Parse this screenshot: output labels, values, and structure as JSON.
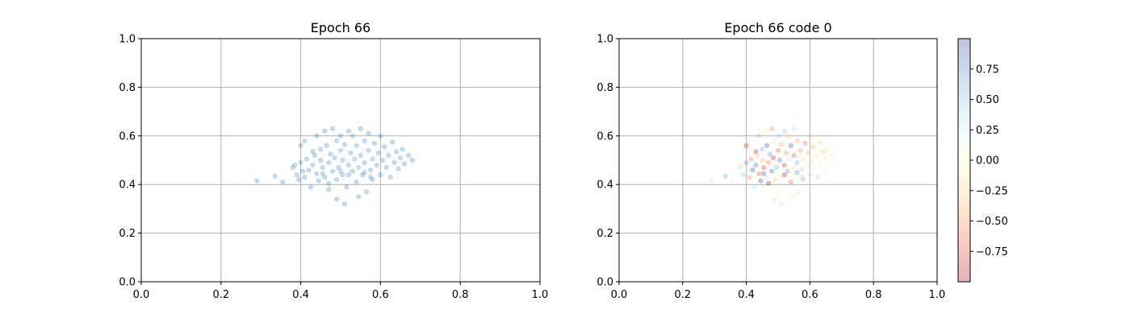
{
  "chart_data": [
    {
      "type": "scatter",
      "title": "Epoch 66",
      "xlim": [
        0.0,
        1.0
      ],
      "ylim": [
        0.0,
        1.0
      ],
      "xticks": [
        "0.0",
        "0.2",
        "0.4",
        "0.6",
        "0.8",
        "1.0"
      ],
      "yticks": [
        "0.0",
        "0.2",
        "0.4",
        "0.6",
        "0.8",
        "1.0"
      ],
      "grid": true,
      "marker_color": "#1f77b4",
      "marker_alpha": 0.25,
      "points": [
        [
          0.29,
          0.415
        ],
        [
          0.335,
          0.435
        ],
        [
          0.355,
          0.41
        ],
        [
          0.38,
          0.47
        ],
        [
          0.385,
          0.48
        ],
        [
          0.39,
          0.44
        ],
        [
          0.395,
          0.42
        ],
        [
          0.4,
          0.56
        ],
        [
          0.4,
          0.49
        ],
        [
          0.405,
          0.455
        ],
        [
          0.41,
          0.43
        ],
        [
          0.41,
          0.58
        ],
        [
          0.415,
          0.505
        ],
        [
          0.42,
          0.46
        ],
        [
          0.425,
          0.39
        ],
        [
          0.43,
          0.535
        ],
        [
          0.43,
          0.48
        ],
        [
          0.435,
          0.52
        ],
        [
          0.44,
          0.6
        ],
        [
          0.44,
          0.445
        ],
        [
          0.445,
          0.415
        ],
        [
          0.45,
          0.5
        ],
        [
          0.45,
          0.545
        ],
        [
          0.455,
          0.47
        ],
        [
          0.46,
          0.43
        ],
        [
          0.46,
          0.62
        ],
        [
          0.465,
          0.56
        ],
        [
          0.47,
          0.49
        ],
        [
          0.47,
          0.38
        ],
        [
          0.475,
          0.525
        ],
        [
          0.48,
          0.63
        ],
        [
          0.48,
          0.455
        ],
        [
          0.485,
          0.51
        ],
        [
          0.49,
          0.58
        ],
        [
          0.49,
          0.42
        ],
        [
          0.495,
          0.47
        ],
        [
          0.5,
          0.54
        ],
        [
          0.5,
          0.6
        ],
        [
          0.505,
          0.44
        ],
        [
          0.505,
          0.5
        ],
        [
          0.51,
          0.565
        ],
        [
          0.515,
          0.39
        ],
        [
          0.52,
          0.48
        ],
        [
          0.52,
          0.62
        ],
        [
          0.525,
          0.53
        ],
        [
          0.53,
          0.455
        ],
        [
          0.53,
          0.6
        ],
        [
          0.535,
          0.505
        ],
        [
          0.54,
          0.41
        ],
        [
          0.54,
          0.56
        ],
        [
          0.545,
          0.47
        ],
        [
          0.55,
          0.63
        ],
        [
          0.55,
          0.52
        ],
        [
          0.555,
          0.44
        ],
        [
          0.56,
          0.58
        ],
        [
          0.56,
          0.49
        ],
        [
          0.565,
          0.37
        ],
        [
          0.57,
          0.54
        ],
        [
          0.57,
          0.61
        ],
        [
          0.575,
          0.46
        ],
        [
          0.58,
          0.505
        ],
        [
          0.58,
          0.42
        ],
        [
          0.585,
          0.57
        ],
        [
          0.59,
          0.48
        ],
        [
          0.595,
          0.53
        ],
        [
          0.6,
          0.44
        ],
        [
          0.6,
          0.6
        ],
        [
          0.605,
          0.5
        ],
        [
          0.61,
          0.555
        ],
        [
          0.615,
          0.47
        ],
        [
          0.62,
          0.52
        ],
        [
          0.625,
          0.43
        ],
        [
          0.63,
          0.575
        ],
        [
          0.635,
          0.49
        ],
        [
          0.64,
          0.535
        ],
        [
          0.645,
          0.465
        ],
        [
          0.65,
          0.51
        ],
        [
          0.655,
          0.545
        ],
        [
          0.66,
          0.485
        ],
        [
          0.67,
          0.52
        ],
        [
          0.68,
          0.5
        ],
        [
          0.49,
          0.34
        ],
        [
          0.545,
          0.35
        ],
        [
          0.51,
          0.32
        ],
        [
          0.47,
          0.405
        ],
        [
          0.455,
          0.445
        ],
        [
          0.52,
          0.44
        ],
        [
          0.56,
          0.45
        ],
        [
          0.575,
          0.43
        ],
        [
          0.5,
          0.455
        ]
      ]
    },
    {
      "type": "scatter",
      "title": "Epoch 66 code 0",
      "xlim": [
        0.0,
        1.0
      ],
      "ylim": [
        0.0,
        1.0
      ],
      "xticks": [
        "0.0",
        "0.2",
        "0.4",
        "0.6",
        "0.8",
        "1.0"
      ],
      "yticks": [
        "0.0",
        "0.2",
        "0.4",
        "0.6",
        "0.8",
        "1.0"
      ],
      "grid": true,
      "marker_alpha": 0.3,
      "colormap": "RdYlBu",
      "colorbar": {
        "range": [
          -1.0,
          1.0
        ],
        "ticks": [
          "−0.75",
          "−0.50",
          "−0.25",
          "0.00",
          "0.25",
          "0.50",
          "0.75"
        ],
        "tick_values": [
          -0.75,
          -0.5,
          -0.25,
          0.0,
          0.25,
          0.5,
          0.75
        ],
        "colors": [
          "#a50026",
          "#d73027",
          "#f46d43",
          "#fdae61",
          "#fee090",
          "#ffffbf",
          "#e0f3f8",
          "#abd9e9",
          "#74add1",
          "#4575b4",
          "#313695"
        ]
      },
      "points": [
        [
          0.29,
          0.415,
          0.3
        ],
        [
          0.335,
          0.435,
          0.6
        ],
        [
          0.355,
          0.41,
          0.2
        ],
        [
          0.38,
          0.47,
          0.4
        ],
        [
          0.385,
          0.48,
          -0.2
        ],
        [
          0.39,
          0.44,
          0.5
        ],
        [
          0.395,
          0.42,
          0.1
        ],
        [
          0.4,
          0.56,
          -0.8
        ],
        [
          0.4,
          0.49,
          0.7
        ],
        [
          0.405,
          0.455,
          0.3
        ],
        [
          0.41,
          0.43,
          -0.5
        ],
        [
          0.41,
          0.58,
          0.2
        ],
        [
          0.415,
          0.505,
          -0.6
        ],
        [
          0.42,
          0.46,
          0.9
        ],
        [
          0.425,
          0.39,
          0.4
        ],
        [
          0.43,
          0.535,
          -0.9
        ],
        [
          0.43,
          0.48,
          0.8
        ],
        [
          0.435,
          0.52,
          -0.3
        ],
        [
          0.44,
          0.6,
          0.5
        ],
        [
          0.44,
          0.445,
          -0.7
        ],
        [
          0.445,
          0.415,
          0.95
        ],
        [
          0.45,
          0.5,
          -0.4
        ],
        [
          0.45,
          0.545,
          0.6
        ],
        [
          0.455,
          0.47,
          -0.8
        ],
        [
          0.46,
          0.43,
          0.3
        ],
        [
          0.46,
          0.62,
          -0.2
        ],
        [
          0.465,
          0.56,
          0.9
        ],
        [
          0.47,
          0.49,
          -0.6
        ],
        [
          0.47,
          0.38,
          0.1
        ],
        [
          0.475,
          0.525,
          0.7
        ],
        [
          0.48,
          0.63,
          -0.5
        ],
        [
          0.48,
          0.455,
          0.85
        ],
        [
          0.485,
          0.51,
          -0.9
        ],
        [
          0.49,
          0.58,
          0.2
        ],
        [
          0.49,
          0.42,
          -0.3
        ],
        [
          0.495,
          0.47,
          0.6
        ],
        [
          0.5,
          0.54,
          -0.7
        ],
        [
          0.5,
          0.6,
          0.4
        ],
        [
          0.505,
          0.44,
          -0.1
        ],
        [
          0.505,
          0.5,
          0.8
        ],
        [
          0.51,
          0.565,
          -0.4
        ],
        [
          0.515,
          0.39,
          0.0
        ],
        [
          0.52,
          0.48,
          -0.8
        ],
        [
          0.52,
          0.62,
          0.5
        ],
        [
          0.525,
          0.53,
          -0.5
        ],
        [
          0.53,
          0.455,
          0.7
        ],
        [
          0.53,
          0.6,
          -0.3
        ],
        [
          0.535,
          0.505,
          0.3
        ],
        [
          0.54,
          0.41,
          -0.6
        ],
        [
          0.54,
          0.56,
          0.9
        ],
        [
          0.545,
          0.47,
          -0.2
        ],
        [
          0.55,
          0.63,
          0.4
        ],
        [
          0.55,
          0.52,
          -0.7
        ],
        [
          0.555,
          0.44,
          0.1
        ],
        [
          0.56,
          0.58,
          -0.4
        ],
        [
          0.56,
          0.49,
          0.6
        ],
        [
          0.565,
          0.37,
          -0.1
        ],
        [
          0.57,
          0.54,
          -0.5
        ],
        [
          0.57,
          0.61,
          0.2
        ],
        [
          0.575,
          0.46,
          -0.3
        ],
        [
          0.58,
          0.505,
          -0.2
        ],
        [
          0.58,
          0.42,
          0.5
        ],
        [
          0.585,
          0.57,
          -0.6
        ],
        [
          0.59,
          0.48,
          -0.1
        ],
        [
          0.595,
          0.53,
          -0.4
        ],
        [
          0.6,
          0.44,
          0.3
        ],
        [
          0.6,
          0.6,
          -0.3
        ],
        [
          0.605,
          0.5,
          -0.15
        ],
        [
          0.61,
          0.555,
          -0.35
        ],
        [
          0.615,
          0.47,
          0.1
        ],
        [
          0.62,
          0.52,
          -0.2
        ],
        [
          0.625,
          0.43,
          0.4
        ],
        [
          0.63,
          0.575,
          -0.25
        ],
        [
          0.635,
          0.49,
          -0.1
        ],
        [
          0.64,
          0.535,
          -0.3
        ],
        [
          0.645,
          0.465,
          0.05
        ],
        [
          0.65,
          0.51,
          -0.15
        ],
        [
          0.655,
          0.545,
          -0.2
        ],
        [
          0.66,
          0.485,
          0.0
        ],
        [
          0.67,
          0.52,
          -0.1
        ],
        [
          0.68,
          0.5,
          0.1
        ],
        [
          0.49,
          0.34,
          -0.2
        ],
        [
          0.545,
          0.35,
          -0.1
        ],
        [
          0.51,
          0.32,
          0.3
        ],
        [
          0.47,
          0.405,
          -0.95
        ],
        [
          0.455,
          0.445,
          0.9
        ],
        [
          0.52,
          0.44,
          -0.9
        ],
        [
          0.56,
          0.45,
          0.7
        ],
        [
          0.575,
          0.43,
          -0.4
        ],
        [
          0.5,
          0.455,
          0.2
        ]
      ]
    }
  ]
}
